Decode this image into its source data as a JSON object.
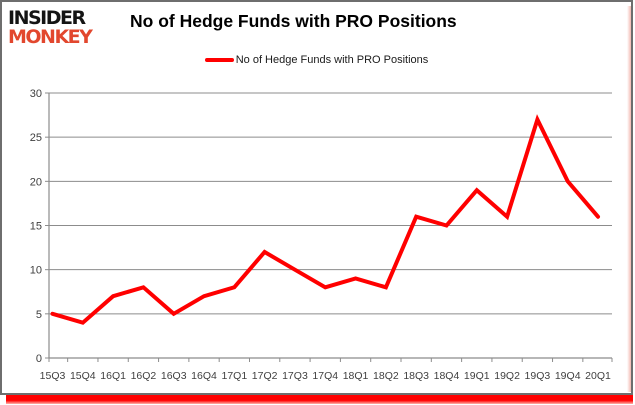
{
  "header": {
    "logo_line1": "INSIDER",
    "logo_line2": "MONKEY",
    "title": "No of Hedge Funds with PRO Positions"
  },
  "legend": {
    "label": "No of Hedge Funds with PRO Positions",
    "line_color": "#ff0000"
  },
  "chart_data": {
    "type": "line",
    "title": "No of Hedge Funds with PRO Positions",
    "categories": [
      "15Q3",
      "15Q4",
      "16Q1",
      "16Q2",
      "16Q3",
      "16Q4",
      "17Q1",
      "17Q2",
      "17Q3",
      "17Q4",
      "18Q1",
      "18Q2",
      "18Q3",
      "18Q4",
      "19Q1",
      "19Q2",
      "19Q3",
      "19Q4",
      "20Q1"
    ],
    "series": [
      {
        "name": "No of Hedge Funds with PRO Positions",
        "color": "#ff0000",
        "values": [
          5,
          4,
          7,
          8,
          5,
          7,
          8,
          12,
          10,
          8,
          9,
          8,
          16,
          15,
          19,
          16,
          27,
          20,
          16
        ]
      }
    ],
    "xlabel": "",
    "ylabel": "",
    "ylim": [
      0,
      30
    ],
    "ytick_step": 5,
    "grid": true,
    "legend_position": "top-center"
  },
  "colors": {
    "line_red": "#ff0000",
    "logo_red": "#e2472e",
    "logo_black": "#141414",
    "grid_gray": "#8c8c8c",
    "frame_gray": "#6e6e6e",
    "axis_text": "#3f3f3f",
    "bottom_band_red": "#ff0000"
  }
}
